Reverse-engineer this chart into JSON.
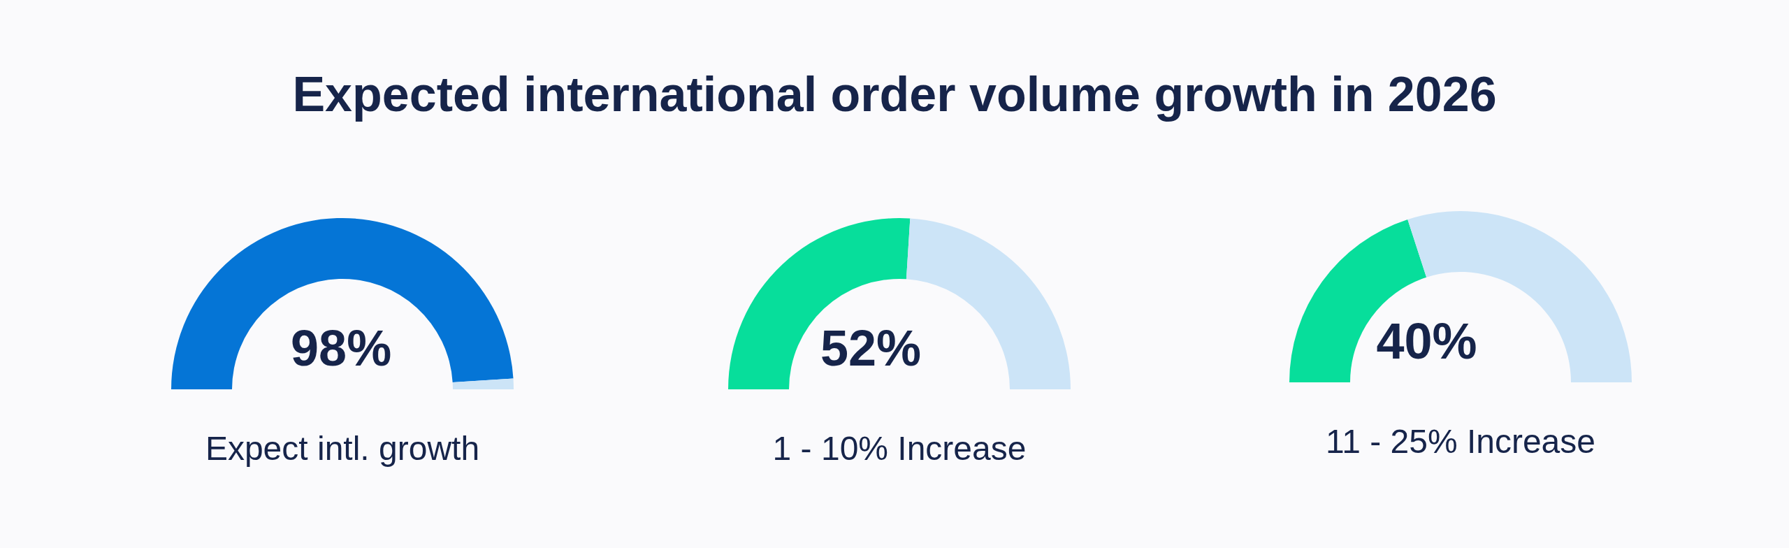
{
  "chart_data": [
    {
      "type": "donut",
      "title": "Expected international order volume growth in 2026",
      "xlabel": "Expect intl. growth",
      "categories": [
        null,
        null
      ],
      "values": [
        98,
        2
      ],
      "colors": [
        "#0575d6",
        "#cce4f7"
      ],
      "value_labels": [
        "98%",
        null
      ]
    },
    {
      "type": "donut",
      "xlabel": "1 - 10% Increase",
      "categories": [
        null,
        null
      ],
      "values": [
        52,
        48
      ],
      "colors": [
        "#07de9b",
        "#cce4f7"
      ],
      "value_labels": [
        "52%",
        null
      ]
    },
    {
      "type": "donut",
      "xlabel": "11 - 25% Increase",
      "categories": [
        null,
        null
      ],
      "values": [
        40,
        60
      ],
      "colors": [
        "#07de9b",
        "#cce4f7"
      ],
      "value_labels": [
        "40%",
        null
      ]
    }
  ]
}
